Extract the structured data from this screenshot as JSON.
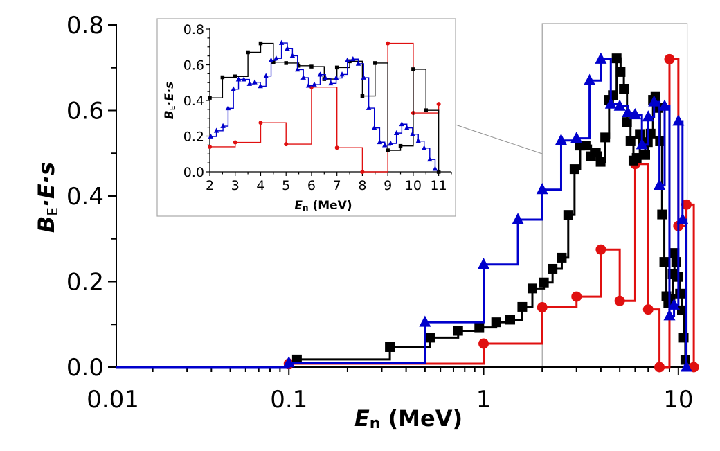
{
  "chart_data": [
    {
      "id": "main",
      "type": "line",
      "style": "step",
      "xscale": "log",
      "xlim": [
        0.013,
        12.8
      ],
      "ylim": [
        0,
        0.8
      ],
      "xlabel": {
        "main": "E",
        "sub": "n",
        "unit": " (MeV)"
      },
      "ylabel": {
        "b": "B",
        "sub": "E",
        "rest": "·E·s"
      },
      "xticks": [
        0.01,
        0.1,
        1,
        10
      ],
      "xtick_labels": [
        "0.01",
        "0.1",
        "1",
        "10"
      ],
      "yticks": [
        0,
        0.2,
        0.4,
        0.6,
        0.8
      ],
      "ytick_labels": [
        "0.0",
        "0.2",
        "0.4",
        "0.6",
        "0.8"
      ],
      "grid": false,
      "zoom_box_x": [
        2,
        11.1
      ],
      "series": [
        {
          "key": "A",
          "color": "#0000cc",
          "marker": "triangle",
          "x": [
            0.1,
            0.5,
            1,
            1.5,
            2,
            2.5,
            3,
            3.5,
            4,
            4.5,
            5,
            5.5,
            6,
            6.5,
            7,
            7.5,
            8,
            8.5,
            9,
            9.5,
            10,
            10.5,
            11
          ],
          "y": [
            0.01,
            0.105,
            0.24,
            0.345,
            0.415,
            0.53,
            0.535,
            0.67,
            0.72,
            0.615,
            0.61,
            0.595,
            0.59,
            0.52,
            0.585,
            0.62,
            0.425,
            0.61,
            0.12,
            0.145,
            0.575,
            0.345,
            0.0
          ]
        },
        {
          "key": "B",
          "color": "#000000",
          "marker": "square",
          "x": [
            0.11,
            0.33,
            0.53,
            0.74,
            0.95,
            1.16,
            1.37,
            1.58,
            1.78,
            2.04,
            2.26,
            2.52,
            2.72,
            2.93,
            3.13,
            3.34,
            3.56,
            3.77,
            3.99,
            4.21,
            4.41,
            4.61,
            4.82,
            5.05,
            5.25,
            5.45,
            5.68,
            5.88,
            6.11,
            6.34,
            6.55,
            6.76,
            6.97,
            7.2,
            7.41,
            7.63,
            7.84,
            8.05,
            8.25,
            8.47,
            8.68,
            8.88,
            9.11,
            9.34,
            9.55,
            9.75,
            9.97,
            10.2,
            10.43,
            10.65,
            10.86
          ],
          "y": [
            0.018,
            0.047,
            0.069,
            0.085,
            0.093,
            0.105,
            0.111,
            0.141,
            0.184,
            0.198,
            0.23,
            0.256,
            0.356,
            0.463,
            0.518,
            0.518,
            0.493,
            0.502,
            0.48,
            0.537,
            0.625,
            0.636,
            0.722,
            0.69,
            0.651,
            0.573,
            0.528,
            0.483,
            0.489,
            0.545,
            0.525,
            0.496,
            0.526,
            0.546,
            0.625,
            0.632,
            0.606,
            0.528,
            0.357,
            0.246,
            0.166,
            0.149,
            0.159,
            0.217,
            0.267,
            0.246,
            0.211,
            0.172,
            0.133,
            0.069,
            0.017
          ]
        },
        {
          "key": "C",
          "color": "#e01010",
          "marker": "circle",
          "x": [
            0.1,
            1,
            2,
            3,
            4,
            5,
            6,
            7,
            8,
            9,
            10,
            11,
            12
          ],
          "y": [
            0.008,
            0.055,
            0.14,
            0.165,
            0.275,
            0.155,
            0.475,
            0.135,
            0.0,
            0.72,
            0.33,
            0.38,
            0.0
          ]
        }
      ]
    },
    {
      "id": "inset",
      "type": "line",
      "style": "step",
      "xscale": "linear",
      "xlim": [
        2,
        11.5
      ],
      "ylim": [
        0,
        0.8
      ],
      "xlabel": {
        "main": "E",
        "sub": "n",
        "unit": " (MeV)"
      },
      "ylabel": {
        "b": "B",
        "sub": "E",
        "rest": "·E·s"
      },
      "xticks": [
        2,
        3,
        4,
        5,
        6,
        7,
        8,
        9,
        10,
        11
      ],
      "xtick_labels": [
        "2",
        "3",
        "4",
        "5",
        "6",
        "7",
        "8",
        "9",
        "10",
        "11"
      ],
      "yticks": [
        0,
        0.2,
        0.4,
        0.6,
        0.8
      ],
      "ytick_labels": [
        "0.0",
        "0.2",
        "0.4",
        "0.6",
        "0.8"
      ],
      "grid": false,
      "series_data": "same as main, restricted to xlim",
      "series_style": {
        "A": {
          "color": "#000000",
          "marker": "square"
        },
        "B": {
          "color": "#0000cc",
          "marker": "triangle"
        },
        "C": {
          "color": "#e01010",
          "marker": "circle"
        }
      }
    }
  ]
}
